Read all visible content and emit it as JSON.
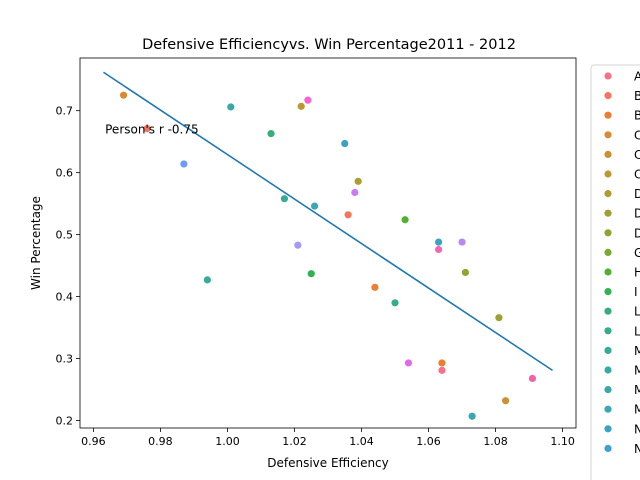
{
  "chart_data": {
    "type": "scatter",
    "title": "Defensive Efficiencyvs. Win Percentage2011 - 2012",
    "xlabel": "Defensive Efficiency",
    "ylabel": "Win Percentage",
    "xlim": [
      0.956,
      1.104
    ],
    "ylim": [
      0.188,
      0.785
    ],
    "xticks": [
      0.96,
      0.98,
      1.0,
      1.02,
      1.04,
      1.06,
      1.08,
      1.1
    ],
    "xtick_labels": [
      "0.96",
      "0.98",
      "1.00",
      "1.02",
      "1.04",
      "1.06",
      "1.08",
      "1.10"
    ],
    "yticks": [
      0.2,
      0.3,
      0.4,
      0.5,
      0.6,
      0.7
    ],
    "ytick_labels": [
      "0.2",
      "0.3",
      "0.4",
      "0.5",
      "0.6",
      "0.7"
    ],
    "grid": false,
    "annotation": "Person's r -0.75",
    "annotation_at": [
      0.9635,
      0.67
    ],
    "regression_line": {
      "x": [
        0.963,
        1.097
      ],
      "y": [
        0.762,
        0.281
      ],
      "color": "#1f77b4"
    },
    "legend_placement": "right, outside",
    "legend_entries": [
      {
        "label": "A",
        "color": "#f77189"
      },
      {
        "label": "B",
        "color": "#f6745e"
      },
      {
        "label": "B",
        "color": "#ed7d31"
      },
      {
        "label": "C",
        "color": "#d98b34"
      },
      {
        "label": "C",
        "color": "#cb9233"
      },
      {
        "label": "C",
        "color": "#bb9832"
      },
      {
        "label": "D",
        "color": "#ad9c31"
      },
      {
        "label": "D",
        "color": "#9fa031"
      },
      {
        "label": "D",
        "color": "#8fa431"
      },
      {
        "label": "G",
        "color": "#7aa932"
      },
      {
        "label": "H",
        "color": "#50b131"
      },
      {
        "label": "I",
        "color": "#33b150"
      },
      {
        "label": "L",
        "color": "#34af77"
      },
      {
        "label": "L",
        "color": "#35ad8a"
      },
      {
        "label": "M",
        "color": "#36ab97"
      },
      {
        "label": "M",
        "color": "#37aaa2"
      },
      {
        "label": "M",
        "color": "#38a8ac"
      },
      {
        "label": "M",
        "color": "#39a7b6"
      },
      {
        "label": "N",
        "color": "#3ba3c1"
      },
      {
        "label": "N",
        "color": "#3da0cf"
      }
    ],
    "points": [
      {
        "x": 0.969,
        "y": 0.725,
        "color": "#d98b34"
      },
      {
        "x": 0.976,
        "y": 0.671,
        "color": "#f6745e"
      },
      {
        "x": 0.987,
        "y": 0.614,
        "color": "#6e9bf4"
      },
      {
        "x": 0.994,
        "y": 0.427,
        "color": "#36ab97"
      },
      {
        "x": 1.001,
        "y": 0.706,
        "color": "#38a8ac"
      },
      {
        "x": 1.013,
        "y": 0.663,
        "color": "#34af77"
      },
      {
        "x": 1.017,
        "y": 0.558,
        "color": "#36ab97"
      },
      {
        "x": 1.021,
        "y": 0.483,
        "color": "#a39af4"
      },
      {
        "x": 1.022,
        "y": 0.707,
        "color": "#bb9832"
      },
      {
        "x": 1.024,
        "y": 0.717,
        "color": "#f264d4"
      },
      {
        "x": 1.025,
        "y": 0.437,
        "color": "#33b150"
      },
      {
        "x": 1.026,
        "y": 0.546,
        "color": "#39a7b6"
      },
      {
        "x": 1.035,
        "y": 0.647,
        "color": "#3ba3c1"
      },
      {
        "x": 1.036,
        "y": 0.532,
        "color": "#f6745e"
      },
      {
        "x": 1.038,
        "y": 0.568,
        "color": "#cc7af4"
      },
      {
        "x": 1.039,
        "y": 0.586,
        "color": "#ad9c31"
      },
      {
        "x": 1.044,
        "y": 0.415,
        "color": "#ed7d31"
      },
      {
        "x": 1.05,
        "y": 0.39,
        "color": "#35ad8a"
      },
      {
        "x": 1.053,
        "y": 0.524,
        "color": "#50b131"
      },
      {
        "x": 1.054,
        "y": 0.293,
        "color": "#e766f0"
      },
      {
        "x": 1.063,
        "y": 0.488,
        "color": "#3ba3c1"
      },
      {
        "x": 1.063,
        "y": 0.476,
        "color": "#f266b3"
      },
      {
        "x": 1.064,
        "y": 0.293,
        "color": "#ed7d31"
      },
      {
        "x": 1.064,
        "y": 0.281,
        "color": "#f77189"
      },
      {
        "x": 1.07,
        "y": 0.488,
        "color": "#b58af4"
      },
      {
        "x": 1.071,
        "y": 0.439,
        "color": "#8fa431"
      },
      {
        "x": 1.073,
        "y": 0.207,
        "color": "#38a8ac"
      },
      {
        "x": 1.081,
        "y": 0.366,
        "color": "#9fa031"
      },
      {
        "x": 1.083,
        "y": 0.232,
        "color": "#cb9233"
      },
      {
        "x": 1.091,
        "y": 0.268,
        "color": "#f561a6"
      }
    ]
  }
}
